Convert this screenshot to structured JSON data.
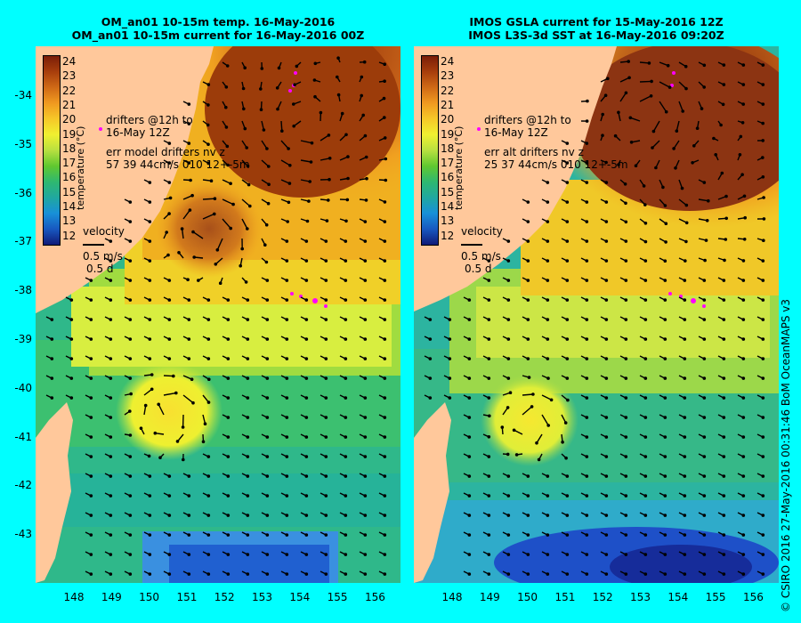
{
  "left": {
    "title_line1": "OM_an01 10-15m temp. 16-May-2016",
    "title_line2": "OM_an01 10-15m current for 16-May-2016 00Z",
    "drifters_line1": "drifters @12h to",
    "drifters_line2": "16-May 12Z",
    "err_line1": "err model drifters nv z",
    "err_line2": "57 39 44cm/s 010 12+-5m"
  },
  "right": {
    "title_line1": "IMOS GSLA current for 15-May-2016 12Z",
    "title_line2": "IMOS L3S-3d SST at 16-May-2016 09:20Z",
    "drifters_line1": "drifters @12h to",
    "drifters_line2": "16-May 12Z",
    "err_line1": "err alt drifters nv z",
    "err_line2": "25 37 44cm/s 010 12+-5m"
  },
  "colorbar": {
    "ticks": [
      "24",
      "23",
      "22",
      "21",
      "20",
      "19",
      "18",
      "17",
      "16",
      "15",
      "14",
      "13",
      "12"
    ],
    "label": "temperature (°C)"
  },
  "velocity_key": {
    "label": "velocity",
    "speed": "0.5 m/s",
    "duration": "0.5 d"
  },
  "lat_labels": [
    "-34",
    "-35",
    "-36",
    "-37",
    "-38",
    "-39",
    "-40",
    "-41",
    "-42",
    "-43"
  ],
  "lon_labels": [
    "148",
    "149",
    "150",
    "151",
    "152",
    "153",
    "154",
    "155",
    "156"
  ],
  "credit": "© CSIRO 2016  27-May-2016 00:31:46 BoM OceanMAPS v3",
  "colors": {
    "background": "#00ffff",
    "land": "#ffc89b",
    "ocean_cool": "#2fb88a",
    "ocean_warm": "#c86414",
    "drifter": "#ff00ff",
    "arrow": "#000000"
  }
}
